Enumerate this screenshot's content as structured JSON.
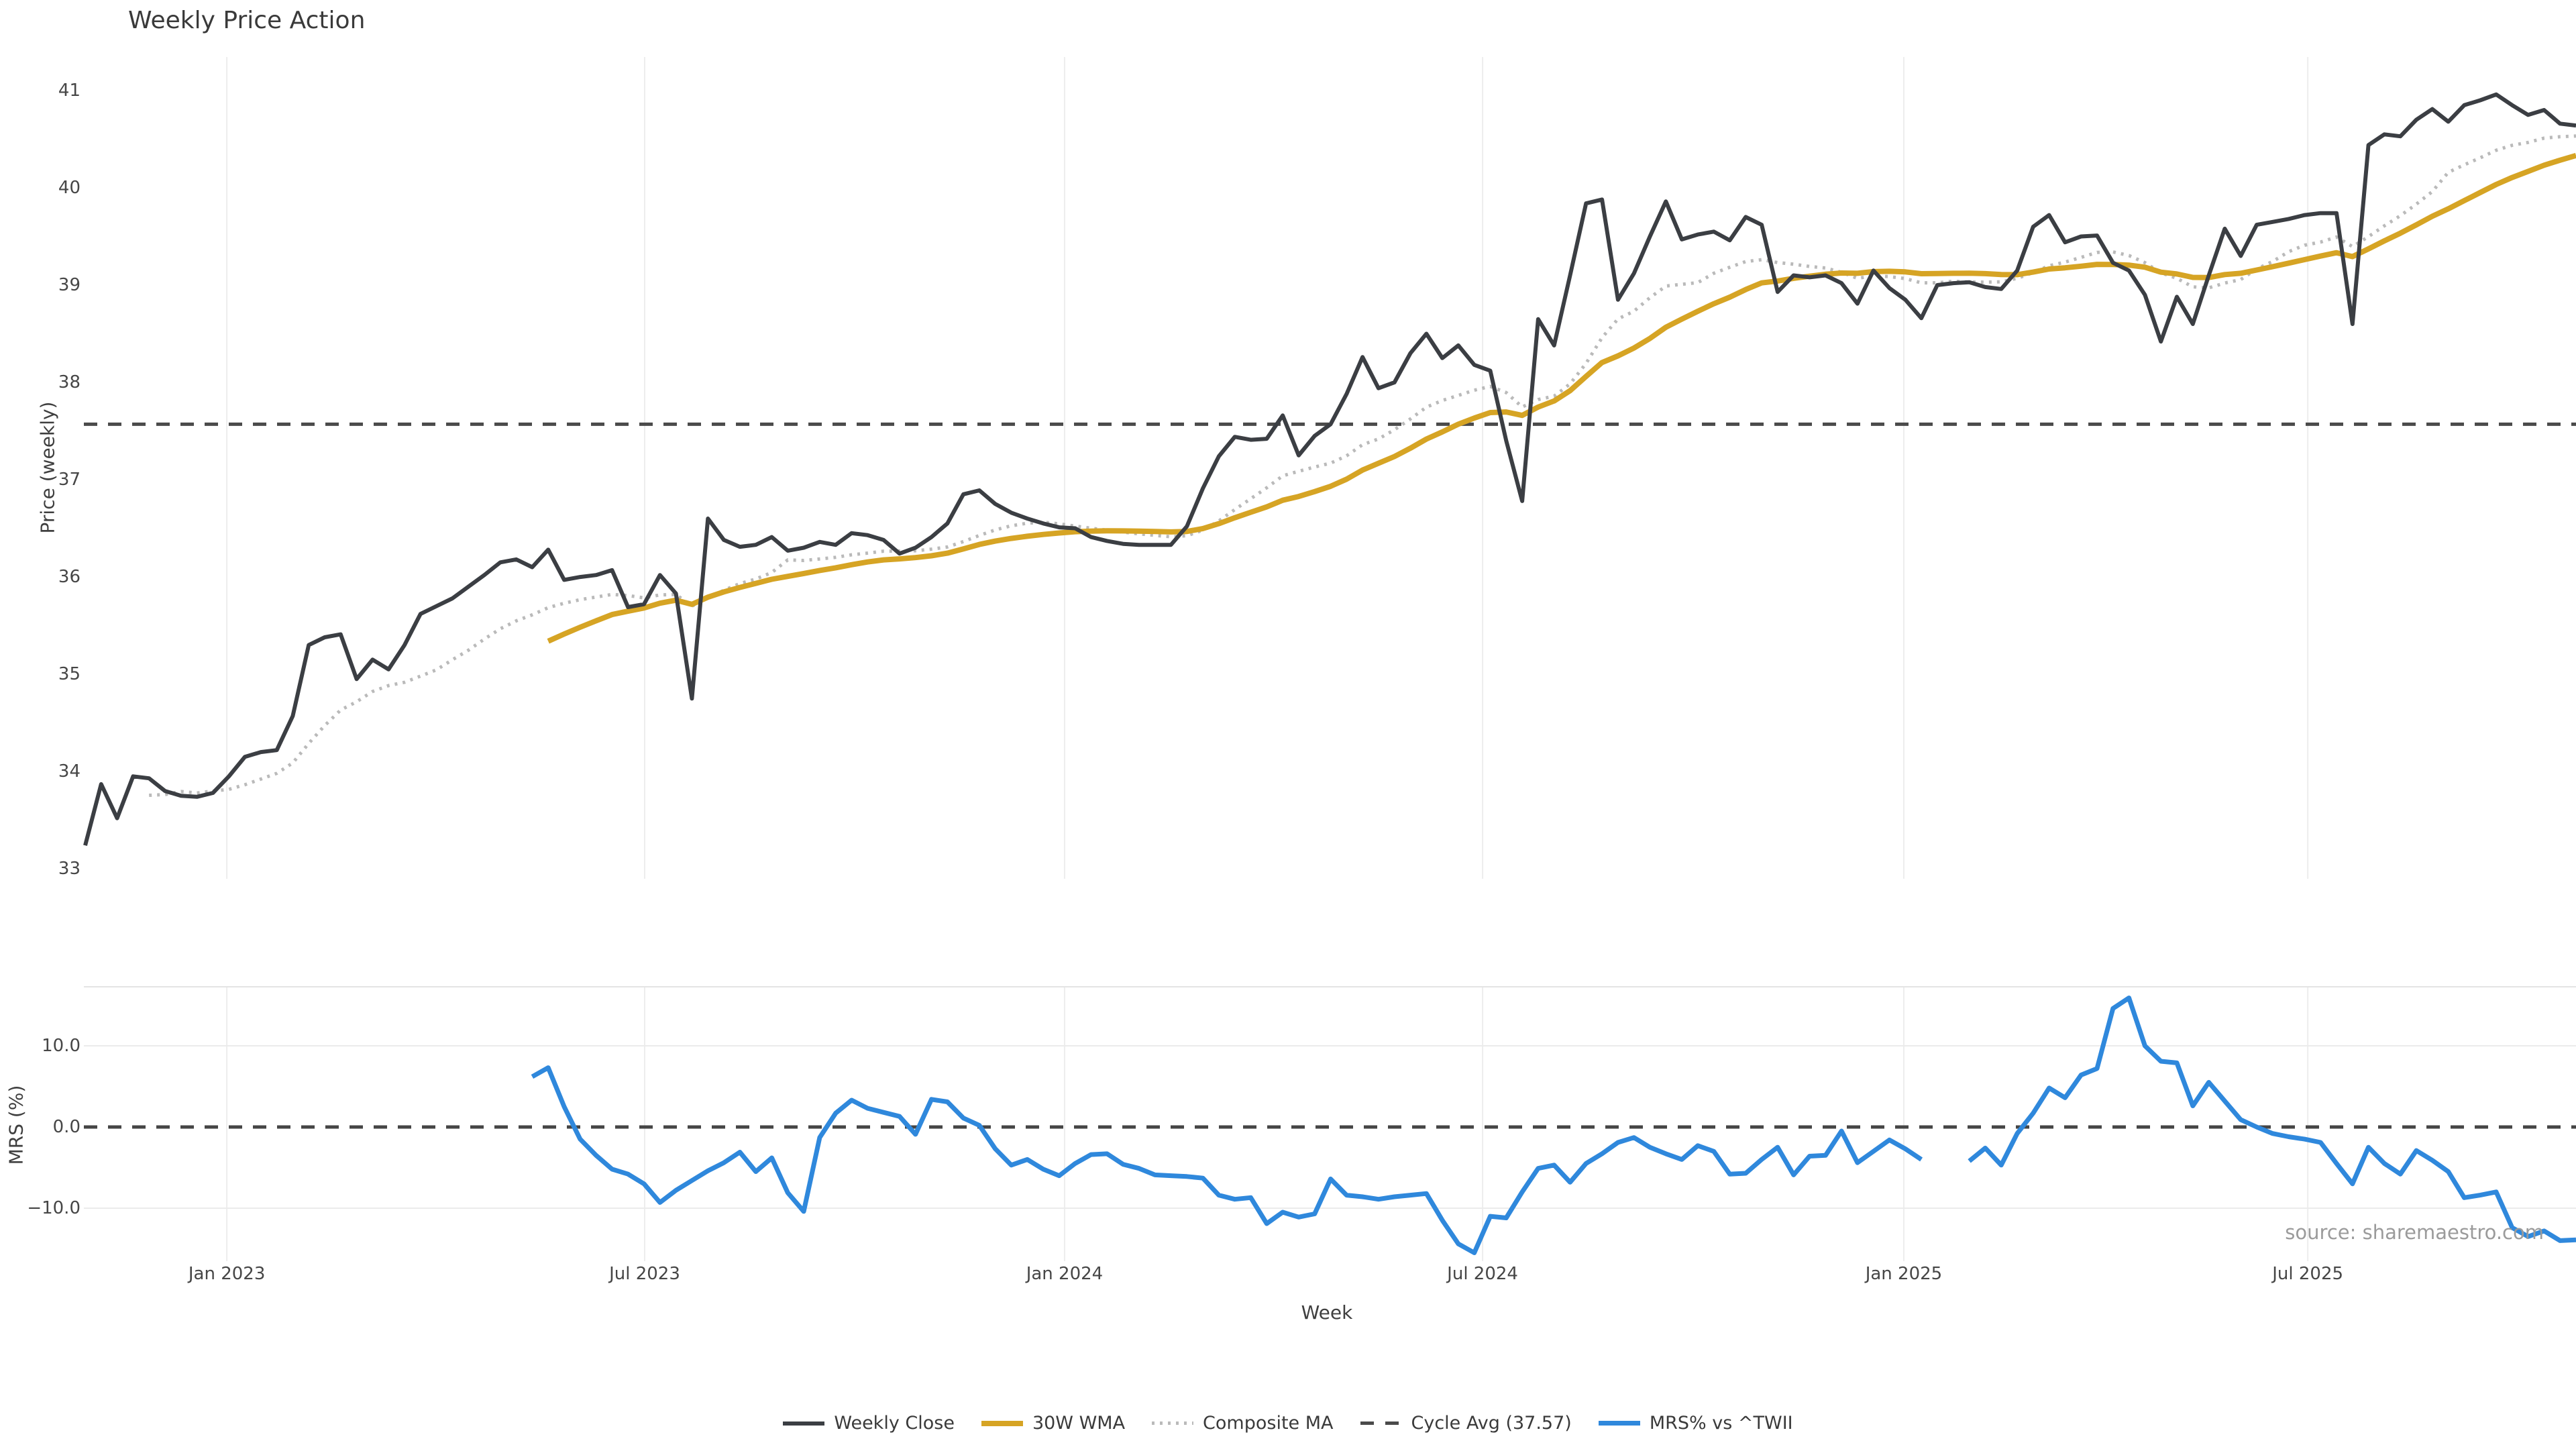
{
  "title": "Weekly Price Action",
  "source_note": "source: sharemaestro.com",
  "chart_data": {
    "type": "line",
    "title": "Weekly Price Action",
    "xlabel": "Week",
    "weeks": 157,
    "x_start": "Nov 2022",
    "x_ticks": [
      {
        "label": "Jan 2023",
        "week": 8.87
      },
      {
        "label": "Jul 2023",
        "week": 35.04
      },
      {
        "label": "Jan 2024",
        "week": 61.34
      },
      {
        "label": "Jul 2024",
        "week": 87.52
      },
      {
        "label": "Jan 2025",
        "week": 113.9
      },
      {
        "label": "Jul 2025",
        "week": 139.2
      }
    ],
    "panels": [
      {
        "id": "price",
        "ylabel": "Price (weekly)",
        "ylim": [
          32.897,
          41.345
        ],
        "yticks": [
          {
            "v": 33,
            "label": "33"
          },
          {
            "v": 34,
            "label": "34"
          },
          {
            "v": 35,
            "label": "35"
          },
          {
            "v": 36,
            "label": "36"
          },
          {
            "v": 37,
            "label": "37"
          },
          {
            "v": 38,
            "label": "38"
          },
          {
            "v": 39,
            "label": "39"
          },
          {
            "v": 40,
            "label": "40"
          },
          {
            "v": 41,
            "label": "41"
          }
        ],
        "grid": "vertical"
      },
      {
        "id": "mrs",
        "ylabel": "MRS (%)",
        "ylim": [
          -16.53,
          17.27
        ],
        "yticks": [
          {
            "v": 10,
            "label": "10.0"
          },
          {
            "v": 0,
            "label": "0.0"
          },
          {
            "v": -10,
            "label": "−10.0"
          }
        ],
        "hgrid": [
          10,
          -10
        ],
        "grid": "vertical"
      }
    ],
    "cycle_avg": 37.57,
    "series": [
      {
        "name": "Weekly Close",
        "panel": "price",
        "color": "#3b3e43",
        "style": "solid",
        "values": [
          33.24,
          33.87,
          33.52,
          33.95,
          33.93,
          33.8,
          33.75,
          33.74,
          33.78,
          33.95,
          34.15,
          34.2,
          34.22,
          34.57,
          35.3,
          35.38,
          35.41,
          34.95,
          35.15,
          35.05,
          35.3,
          35.62,
          35.7,
          35.78,
          35.9,
          36.02,
          36.15,
          36.18,
          36.1,
          36.28,
          35.97,
          36.0,
          36.02,
          36.07,
          35.69,
          35.72,
          36.02,
          35.83,
          34.75,
          36.6,
          36.38,
          36.31,
          36.33,
          36.41,
          36.27,
          36.3,
          36.36,
          36.33,
          36.45,
          36.43,
          36.38,
          36.24,
          36.3,
          36.41,
          36.55,
          36.85,
          36.89,
          36.75,
          36.66,
          36.6,
          36.55,
          36.51,
          36.5,
          36.41,
          36.37,
          36.34,
          36.33,
          36.33,
          36.33,
          36.52,
          36.91,
          37.24,
          37.44,
          37.41,
          37.42,
          37.66,
          37.25,
          37.45,
          37.57,
          37.88,
          38.26,
          37.94,
          38.0,
          38.3,
          38.5,
          38.25,
          38.38,
          38.18,
          38.12,
          37.4,
          36.78,
          38.65,
          38.38,
          39.1,
          39.84,
          39.88,
          38.85,
          39.12,
          39.5,
          39.86,
          39.47,
          39.52,
          39.55,
          39.46,
          39.7,
          39.62,
          38.93,
          39.1,
          39.08,
          39.1,
          39.02,
          38.81,
          39.15,
          38.97,
          38.85,
          38.66,
          39.0,
          39.02,
          39.03,
          38.98,
          38.96,
          39.15,
          39.6,
          39.72,
          39.44,
          39.5,
          39.51,
          39.23,
          39.15,
          38.9,
          38.42,
          38.88,
          38.6,
          39.1,
          39.58,
          39.3,
          39.62,
          39.65,
          39.68,
          39.72,
          39.74,
          39.74,
          38.6,
          40.44,
          40.55,
          40.53,
          40.7,
          40.81,
          40.68,
          40.85,
          40.9,
          40.96,
          40.85,
          40.75,
          40.8,
          40.66,
          40.64
        ]
      },
      {
        "name": "30W WMA",
        "panel": "price",
        "color": "#d6a424",
        "style": "solid",
        "derived": "wma30",
        "window": 30
      },
      {
        "name": "Composite MA",
        "panel": "price",
        "color": "#bababa",
        "style": "dotted",
        "derived": "composite"
      },
      {
        "name": "Cycle Avg (37.57)",
        "panel": "price",
        "color": "#4a4a4a",
        "style": "dashed",
        "constant": 37.57
      },
      {
        "name": "MRS% vs ^TWII",
        "panel": "mrs",
        "color": "#2f88dc",
        "style": "solid",
        "start_week": 28,
        "values": [
          6.2,
          7.3,
          2.5,
          -1.5,
          -3.5,
          -5.2,
          -5.8,
          -7.0,
          -9.3,
          -7.8,
          -6.6,
          -5.4,
          -4.4,
          -3.1,
          -5.5,
          -3.8,
          -8.1,
          -10.4,
          -1.3,
          1.7,
          3.3,
          2.3,
          1.8,
          1.3,
          -0.9,
          3.4,
          3.1,
          1.1,
          0.2,
          -2.7,
          -4.7,
          -4.0,
          -5.2,
          -6.0,
          -4.5,
          -3.4,
          -3.3,
          -4.6,
          -5.1,
          -5.9,
          -6.0,
          -6.1,
          -6.3,
          -8.4,
          -8.9,
          -8.7,
          -11.9,
          -10.5,
          -11.1,
          -10.7,
          -6.4,
          -8.4,
          -8.6,
          -8.9,
          -8.6,
          -8.4,
          -8.2,
          -11.5,
          -14.4,
          -15.5,
          -11.0,
          -11.2,
          -8.0,
          -5.1,
          -4.7,
          -6.8,
          -4.5,
          -3.3,
          -1.9,
          -1.3,
          -2.5,
          -3.3,
          -4.0,
          -2.3,
          -3.0,
          -5.8,
          -5.7,
          -4.0,
          -2.5,
          -5.9,
          -3.6,
          -3.5,
          -0.5,
          -4.4,
          -3.0,
          -1.6,
          -2.7,
          -4.0,
          null,
          null,
          -4.2,
          -2.6,
          -4.7,
          -0.8,
          1.7,
          4.8,
          3.6,
          6.4,
          7.2,
          14.6,
          15.9,
          10.0,
          8.1,
          7.9,
          2.6,
          5.5,
          3.2,
          0.9,
          0.0,
          -0.8,
          -1.2,
          -1.5,
          -1.9,
          -4.5,
          -7.0,
          -2.5,
          -4.5,
          -5.8,
          -2.9,
          -4.1,
          -5.5,
          -8.7,
          -8.4,
          -8.0,
          -12.4,
          -13.5,
          -12.8,
          -14.0,
          -13.9
        ]
      }
    ],
    "legend_position": "bottom-center"
  }
}
